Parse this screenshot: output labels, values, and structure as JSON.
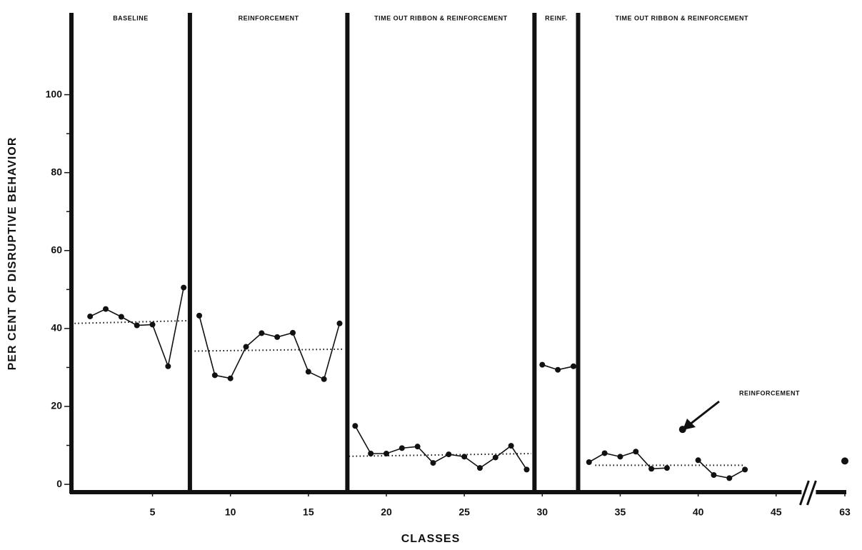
{
  "chart_data": {
    "type": "line",
    "xlabel": "CLASSES",
    "ylabel": "PER CENT OF DISRUPTIVE BEHAVIOR",
    "xlim": [
      -0.2,
      49.5
    ],
    "ylim": [
      -2,
      121
    ],
    "axis_break": 47,
    "xticks": [
      5,
      10,
      15,
      20,
      25,
      30,
      35,
      40,
      45,
      63
    ],
    "yticks": [
      0,
      20,
      40,
      60,
      80,
      100
    ],
    "yminor": [
      10,
      30,
      50,
      70,
      90
    ],
    "color": "#111111",
    "phases": [
      {
        "label": "BASELINE"
      },
      {
        "label": "REINFORCEMENT"
      },
      {
        "label": "TIME OUT RIBBON & REINFORCEMENT"
      },
      {
        "label": "REINF."
      },
      {
        "label": "TIME OUT RIBBON & REINFORCEMENT"
      }
    ],
    "phase_dividers": [
      7.4,
      17.5,
      29.5,
      32.3
    ],
    "segments": [
      {
        "x": [
          1,
          2,
          3,
          4,
          5,
          6,
          7
        ],
        "values": [
          43.1,
          45,
          43,
          40.8,
          41,
          30.3,
          50.5
        ]
      },
      {
        "x": [
          8,
          9,
          10,
          11,
          12,
          13,
          14,
          15,
          16,
          17
        ],
        "values": [
          43.3,
          28,
          27.2,
          35.3,
          38.8,
          37.8,
          38.9,
          28.9,
          27,
          41.3
        ]
      },
      {
        "x": [
          18,
          19,
          20,
          21,
          22,
          23,
          24,
          25,
          26,
          27,
          28,
          29
        ],
        "values": [
          15,
          7.9,
          7.9,
          9.3,
          9.7,
          5.5,
          7.7,
          7.1,
          4.2,
          6.9,
          9.9,
          3.8
        ]
      },
      {
        "x": [
          30,
          31,
          32
        ],
        "values": [
          30.7,
          29.4,
          30.3
        ]
      },
      {
        "x": [
          33,
          34,
          35,
          36,
          37,
          38
        ],
        "values": [
          5.7,
          8,
          7.1,
          8.4,
          4,
          4.2
        ]
      },
      {
        "x": [
          39
        ],
        "values": [
          14.1
        ]
      },
      {
        "x": [
          40,
          41,
          42,
          43
        ],
        "values": [
          6.2,
          2.4,
          1.6,
          3.8
        ]
      },
      {
        "x": [
          63
        ],
        "values": [
          6
        ]
      }
    ],
    "trend_lines": [
      {
        "x": [
          0,
          7.3
        ],
        "values": [
          41.3,
          42
        ]
      },
      {
        "x": [
          7.7,
          17.3
        ],
        "values": [
          34.2,
          34.7
        ]
      },
      {
        "x": [
          17.6,
          29.3
        ],
        "values": [
          7.2,
          7.9
        ]
      },
      {
        "x": [
          33.4,
          43
        ],
        "values": [
          4.9,
          4.9
        ]
      }
    ],
    "annotation": "REINFORCEMENT"
  }
}
